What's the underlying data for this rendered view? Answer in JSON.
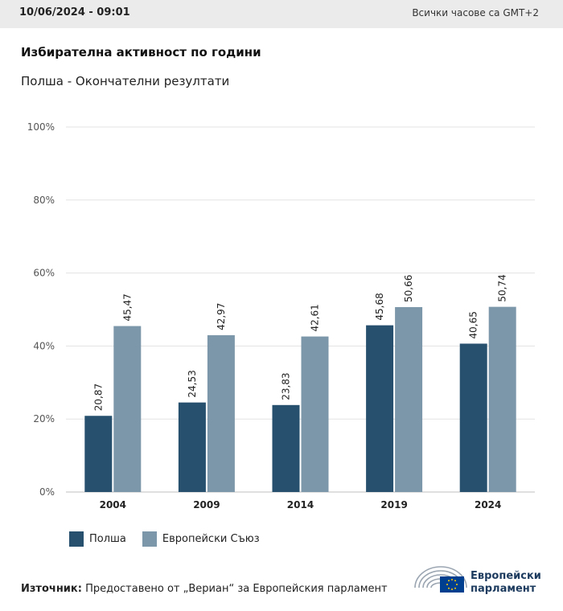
{
  "header": {
    "timestamp": "10/06/2024 - 09:01",
    "timezone_note": "Всички часове са GMT+2"
  },
  "title": "Избирателна активност по години",
  "subtitle": "Полша - Окончателни резултати",
  "chart_data": {
    "type": "bar",
    "categories": [
      "2004",
      "2009",
      "2014",
      "2019",
      "2024"
    ],
    "series": [
      {
        "name": "Полша",
        "values": [
          20.87,
          24.53,
          23.83,
          45.68,
          40.65
        ],
        "color": "#27506f"
      },
      {
        "name": "Европейски Съюз",
        "values": [
          45.47,
          42.97,
          42.61,
          50.66,
          50.74
        ],
        "color": "#7d97aa"
      }
    ],
    "value_labels": [
      [
        "20,87",
        "24,53",
        "23,83",
        "45,68",
        "40,65"
      ],
      [
        "45,47",
        "42,97",
        "42,61",
        "50,66",
        "50,74"
      ]
    ],
    "ylim": [
      0,
      100
    ],
    "yticks": [
      "0%",
      "20%",
      "40%",
      "60%",
      "80%",
      "100%"
    ],
    "grid": true,
    "legend_position": "bottom-left"
  },
  "source": {
    "label": "Източник:",
    "text": " Предоставено от „Вериан“ за Европейския парламент"
  },
  "logo": {
    "line1": "Европейски",
    "line2": "парламент"
  }
}
